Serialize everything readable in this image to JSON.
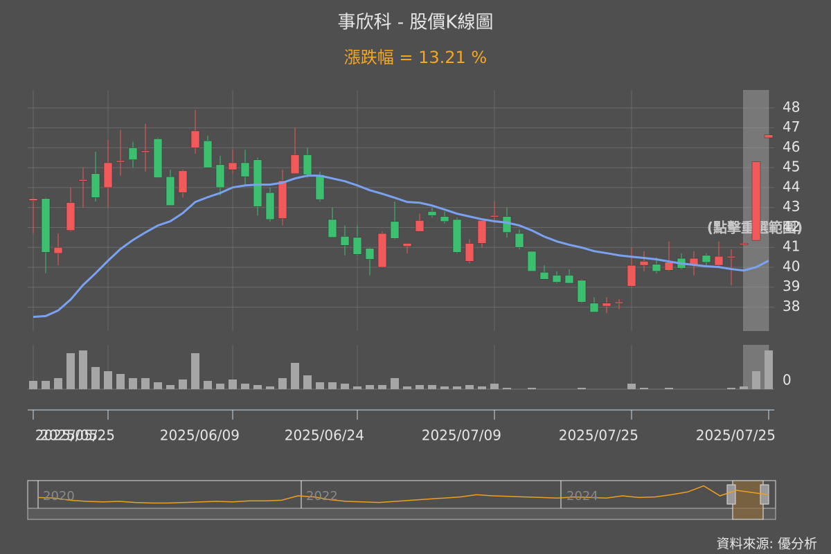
{
  "chart_data": {
    "type": "candlestick",
    "title": "事欣科 - 股價K線圖",
    "subtitle": "漲跌幅 = 13.21 %",
    "annotation": "(點擊重選範圍)",
    "source": "資料來源: 優分析",
    "up_color": "#f05a5a",
    "down_color": "#3cc070",
    "grid": true,
    "categories": [
      "2025/05...",
      null,
      null,
      null,
      null,
      null,
      "2025/05/25",
      null,
      null,
      null,
      null,
      null,
      null,
      null,
      null,
      null,
      "2025/06/09",
      null,
      null,
      null,
      null,
      null,
      null,
      null,
      null,
      null,
      "2025/06/24",
      null,
      null,
      null,
      null,
      null,
      null,
      null,
      null,
      null,
      null,
      "2025/07/09",
      null,
      null,
      null,
      null,
      null,
      null,
      null,
      null,
      null,
      null,
      "2025/07/25",
      null,
      null,
      null,
      null,
      null,
      null,
      null,
      null,
      null,
      null,
      "2025/07/25"
    ],
    "open": [
      43.35,
      43.45,
      40.7,
      41.85,
      44.35,
      44.7,
      44.0,
      45.3,
      46.0,
      45.8,
      46.45,
      44.55,
      43.75,
      46.0,
      46.35,
      45.15,
      44.9,
      45.25,
      45.4,
      43.75,
      42.45,
      44.7,
      45.65,
      44.65,
      42.4,
      41.55,
      41.5,
      40.95,
      40.0,
      42.3,
      41.05,
      41.8,
      42.8,
      42.55,
      42.4,
      40.3,
      41.2,
      42.55,
      42.55,
      41.7,
      40.8,
      39.75,
      39.6,
      39.6,
      39.35,
      38.2,
      38.05,
      38.2,
      39.05,
      40.1,
      40.15,
      39.85,
      40.45,
      40.1,
      40.6,
      40.1,
      40.55,
      41.2,
      41.35,
      46.5
    ],
    "high": [
      43.5,
      43.5,
      41.7,
      44.0,
      45.0,
      45.8,
      46.4,
      46.9,
      46.3,
      47.2,
      46.5,
      44.9,
      44.9,
      47.9,
      46.6,
      45.6,
      45.9,
      45.9,
      45.5,
      44.0,
      44.9,
      47.0,
      46.0,
      44.8,
      43.0,
      42.1,
      42.1,
      41.0,
      41.8,
      43.3,
      41.2,
      42.7,
      43.0,
      42.8,
      42.5,
      41.4,
      42.4,
      43.3,
      43.0,
      41.9,
      40.8,
      40.1,
      39.8,
      39.9,
      39.4,
      38.5,
      38.5,
      38.4,
      41.0,
      40.8,
      40.5,
      41.3,
      40.7,
      40.8,
      40.7,
      41.3,
      40.9,
      41.3,
      45.3,
      46.7
    ],
    "low": [
      41.7,
      39.7,
      40.1,
      41.8,
      43.0,
      43.3,
      43.0,
      44.6,
      45.0,
      44.8,
      44.5,
      43.1,
      43.5,
      45.7,
      45.0,
      43.6,
      44.7,
      44.1,
      42.6,
      42.3,
      42.1,
      44.7,
      44.5,
      43.3,
      41.5,
      40.6,
      40.6,
      39.6,
      40.0,
      41.4,
      40.7,
      41.8,
      42.5,
      42.2,
      40.7,
      40.2,
      41.0,
      42.2,
      41.5,
      40.9,
      39.8,
      39.4,
      39.2,
      39.2,
      38.2,
      37.75,
      37.7,
      37.9,
      39.0,
      39.8,
      39.7,
      39.8,
      39.9,
      39.6,
      40.1,
      40.0,
      39.1,
      41.1,
      41.3,
      46.5
    ],
    "close": [
      43.45,
      40.75,
      41.0,
      43.25,
      44.4,
      43.5,
      45.25,
      45.35,
      45.4,
      45.85,
      44.5,
      43.1,
      44.85,
      46.85,
      45.0,
      44.0,
      45.25,
      44.55,
      43.05,
      42.4,
      44.35,
      45.65,
      44.65,
      43.4,
      41.5,
      41.1,
      40.65,
      40.4,
      41.7,
      41.45,
      41.2,
      42.35,
      42.6,
      42.3,
      40.75,
      41.2,
      42.35,
      42.6,
      41.75,
      41.0,
      39.8,
      39.4,
      39.25,
      39.2,
      38.25,
      37.75,
      38.2,
      38.25,
      40.1,
      40.3,
      39.8,
      40.25,
      39.95,
      40.45,
      40.25,
      40.55,
      40.55,
      41.2,
      45.3,
      46.65
    ],
    "ma": {
      "color": "#79a3f2",
      "values": [
        37.51,
        37.55,
        37.83,
        38.38,
        39.11,
        39.7,
        40.33,
        40.92,
        41.37,
        41.75,
        42.1,
        42.31,
        42.72,
        43.28,
        43.52,
        43.73,
        44.01,
        44.11,
        44.15,
        44.15,
        44.25,
        44.46,
        44.6,
        44.6,
        44.46,
        44.32,
        44.11,
        43.87,
        43.69,
        43.49,
        43.28,
        43.24,
        43.1,
        42.9,
        42.69,
        42.55,
        42.41,
        42.31,
        42.24,
        42.1,
        41.85,
        41.54,
        41.3,
        41.13,
        40.99,
        40.81,
        40.71,
        40.6,
        40.53,
        40.47,
        40.4,
        40.29,
        40.19,
        40.12,
        40.05,
        40.01,
        39.91,
        39.84,
        40.01,
        40.33
      ]
    },
    "ylim": [
      36.8,
      48.9
    ],
    "yticks": [
      38,
      39,
      40,
      41,
      42,
      43,
      44,
      45,
      46,
      47,
      48
    ],
    "volume": {
      "color": "#a6a6a6",
      "ylim": [
        0,
        64
      ],
      "yticks": [
        0
      ],
      "values": [
        12,
        12,
        16,
        52,
        56,
        32,
        26,
        22,
        16,
        16,
        10,
        6,
        14,
        52,
        12,
        8,
        14,
        8,
        6,
        4,
        16,
        38,
        20,
        10,
        10,
        8,
        4,
        6,
        6,
        16,
        4,
        6,
        6,
        4,
        4,
        6,
        4,
        8,
        2,
        0,
        2,
        0,
        0,
        0,
        2,
        0,
        0,
        0,
        8,
        2,
        0,
        2,
        0,
        0,
        0,
        0,
        2,
        4,
        26,
        56
      ]
    },
    "navigator": {
      "color": "#f0a020",
      "ylim": [
        0,
        45
      ],
      "labels": [
        "2020",
        "2022",
        "2024"
      ],
      "values": [
        17,
        16,
        12,
        10,
        9,
        10,
        8,
        7,
        7,
        8,
        9,
        10,
        9,
        11,
        11,
        12,
        20,
        18,
        13,
        10,
        9,
        8,
        10,
        12,
        14,
        16,
        18,
        22,
        20,
        19,
        18,
        17,
        16,
        18,
        17,
        16,
        20,
        17,
        18,
        22,
        27,
        38,
        20,
        30,
        26,
        22
      ]
    }
  }
}
